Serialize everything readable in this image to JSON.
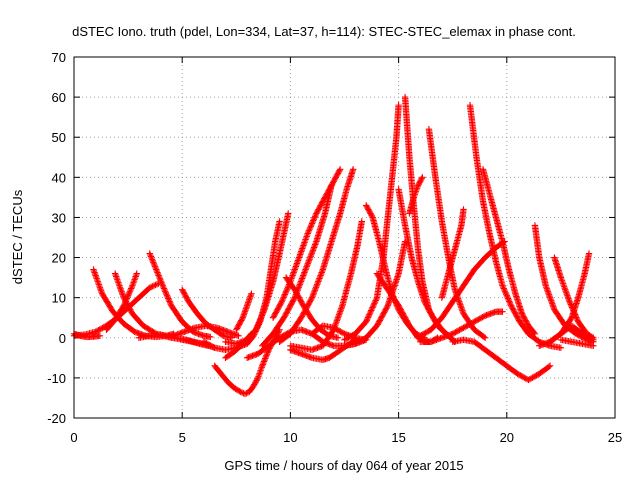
{
  "chart_data": {
    "type": "scatter",
    "title": "dSTEC Iono. truth (pdel, Lon=334, Lat=37, h=114): STEC-STEC_elemax in phase cont.",
    "xlabel": "GPS time / hours of day 064 of year 2015",
    "ylabel": "dSTEC  / TECUs",
    "xlim": [
      0,
      25
    ],
    "ylim": [
      -20,
      70
    ],
    "xticks": [
      0,
      5,
      10,
      15,
      20,
      25
    ],
    "yticks": [
      -20,
      -10,
      0,
      10,
      20,
      30,
      40,
      50,
      60,
      70
    ],
    "grid": true,
    "marker": "+",
    "color": "#ff0000",
    "series": [
      {
        "x": [
          0.0,
          0.3,
          0.6,
          0.9,
          1.2
        ],
        "y": [
          1.0,
          0.5,
          0.2,
          0.3,
          0.5
        ]
      },
      {
        "x": [
          0.9,
          1.3,
          1.8,
          2.3,
          2.8,
          3.3,
          3.8,
          4.3,
          4.6
        ],
        "y": [
          17.0,
          11.0,
          6.5,
          3.5,
          1.5,
          0.5,
          0.2,
          0.5,
          1.0
        ]
      },
      {
        "x": [
          0.0,
          0.5,
          1.0,
          1.5,
          2.0,
          2.5,
          3.0,
          3.5,
          3.9
        ],
        "y": [
          0.5,
          0.8,
          1.5,
          3.0,
          5.0,
          7.5,
          10.0,
          12.5,
          13.5
        ]
      },
      {
        "x": [
          1.9,
          2.3,
          2.7,
          3.2,
          3.8,
          4.5,
          5.2,
          5.8,
          6.2
        ],
        "y": [
          16.0,
          10.0,
          6.0,
          3.0,
          1.0,
          0.0,
          -0.5,
          -1.5,
          -2.0
        ]
      },
      {
        "x": [
          1.5,
          1.9,
          2.3,
          2.7,
          2.9
        ],
        "y": [
          2.0,
          4.5,
          8.0,
          13.0,
          16.0
        ]
      },
      {
        "x": [
          3.5,
          3.8,
          4.1,
          4.5,
          5.0,
          5.5,
          6.0,
          6.3
        ],
        "y": [
          21.0,
          17.0,
          13.0,
          8.0,
          4.0,
          1.5,
          0.5,
          0.2
        ]
      },
      {
        "x": [
          3.0,
          3.5,
          4.0,
          4.5,
          5.0,
          5.5,
          6.0,
          6.5
        ],
        "y": [
          0.0,
          0.5,
          0.8,
          0.2,
          -0.5,
          -1.0,
          -1.5,
          -2.5
        ]
      },
      {
        "x": [
          5.0,
          5.3,
          5.7,
          6.1,
          6.5,
          6.9,
          7.3
        ],
        "y": [
          12.0,
          9.0,
          6.0,
          3.5,
          2.0,
          0.5,
          0.0
        ]
      },
      {
        "x": [
          4.6,
          5.1,
          5.6,
          6.1,
          6.6,
          7.1,
          7.6
        ],
        "y": [
          0.5,
          1.5,
          2.5,
          3.0,
          2.5,
          1.5,
          0.5
        ]
      },
      {
        "x": [
          6.5,
          6.8,
          7.1,
          7.4,
          7.7,
          7.9,
          8.1,
          8.3,
          8.5,
          8.7,
          9.0,
          9.3,
          9.5
        ],
        "y": [
          -7.0,
          -9.0,
          -11.0,
          -12.5,
          -13.5,
          -14.0,
          -13.5,
          -12.0,
          -10.0,
          -7.0,
          -3.0,
          0.0,
          2.0
        ]
      },
      {
        "x": [
          6.0,
          6.5,
          7.0,
          7.5,
          8.0,
          8.3,
          8.6,
          8.9,
          9.1,
          9.3,
          9.5
        ],
        "y": [
          -1.0,
          -2.5,
          -3.0,
          -2.5,
          -1.5,
          0.5,
          4.0,
          10.0,
          17.0,
          24.0,
          29.0
        ]
      },
      {
        "x": [
          7.0,
          7.5,
          8.0,
          8.4,
          8.8,
          9.2,
          9.5,
          9.7,
          9.9
        ],
        "y": [
          -1.0,
          -1.5,
          -0.5,
          2.0,
          7.0,
          14.0,
          21.0,
          26.0,
          31.0
        ]
      },
      {
        "x": [
          7.5,
          7.8,
          8.0,
          8.2
        ],
        "y": [
          2.0,
          5.0,
          8.0,
          11.0
        ]
      },
      {
        "x": [
          7.0,
          7.4,
          7.8,
          8.2
        ],
        "y": [
          -5.0,
          -3.5,
          -1.5,
          1.0
        ]
      },
      {
        "x": [
          9.8,
          10.2,
          10.6,
          11.0,
          11.4,
          11.8,
          12.2
        ],
        "y": [
          15.0,
          12.0,
          8.0,
          4.5,
          2.0,
          0.5,
          0.0
        ]
      },
      {
        "x": [
          8.0,
          8.5,
          9.0,
          9.5,
          10.0,
          10.5,
          11.0,
          11.5,
          12.0,
          12.5,
          13.0,
          13.5
        ],
        "y": [
          -5.0,
          -4.0,
          -2.0,
          0.0,
          1.5,
          2.0,
          1.0,
          -1.0,
          -2.0,
          -2.0,
          -1.5,
          -0.5
        ]
      },
      {
        "x": [
          9.2,
          9.6,
          10.0,
          10.4,
          10.8,
          11.2,
          11.6,
          12.0,
          12.3
        ],
        "y": [
          5.0,
          9.0,
          14.0,
          20.0,
          26.0,
          31.0,
          35.0,
          39.0,
          42.0
        ]
      },
      {
        "x": [
          8.7,
          9.2,
          9.7,
          10.2,
          10.7,
          11.2,
          11.6,
          11.9
        ],
        "y": [
          -2.0,
          1.0,
          5.0,
          10.0,
          17.0,
          24.0,
          31.0,
          38.0
        ]
      },
      {
        "x": [
          9.5,
          10.0,
          10.5,
          11.0,
          11.5,
          11.9,
          12.3,
          12.6,
          12.9
        ],
        "y": [
          -1.0,
          1.0,
          5.0,
          10.0,
          17.0,
          24.0,
          31.0,
          37.0,
          42.0
        ]
      },
      {
        "x": [
          10.0,
          10.5,
          11.0,
          11.5,
          12.0,
          12.4,
          12.8,
          13.1,
          13.3
        ],
        "y": [
          -2.0,
          -2.5,
          -3.0,
          -2.0,
          2.0,
          8.0,
          16.0,
          23.0,
          29.0
        ]
      },
      {
        "x": [
          10.0,
          10.5,
          11.0,
          11.5,
          11.8,
          12.2,
          12.6,
          13.0
        ],
        "y": [
          -3.0,
          -4.0,
          -5.0,
          -5.5,
          -5.0,
          -3.5,
          -2.0,
          -0.5
        ]
      },
      {
        "x": [
          11.0,
          11.5,
          12.0,
          12.5,
          13.0,
          13.4
        ],
        "y": [
          1.0,
          3.0,
          2.5,
          1.0,
          0.0,
          -0.5
        ]
      },
      {
        "x": [
          12.5,
          13.0,
          13.5,
          14.0,
          14.5,
          15.0,
          15.3
        ],
        "y": [
          -2.0,
          -1.5,
          0.0,
          3.0,
          8.0,
          16.0,
          24.0
        ]
      },
      {
        "x": [
          13.5,
          13.8,
          14.1,
          14.4,
          14.7,
          15.0,
          15.4,
          15.8,
          16.2
        ],
        "y": [
          33.0,
          30.0,
          24.0,
          17.0,
          11.0,
          7.0,
          3.5,
          1.0,
          0.0
        ]
      },
      {
        "x": [
          12.5,
          13.0,
          13.5,
          14.0,
          14.3,
          14.6,
          14.9,
          15.0
        ],
        "y": [
          -0.5,
          1.0,
          4.0,
          10.0,
          20.0,
          35.0,
          50.0,
          58.0
        ]
      },
      {
        "x": [
          15.3,
          15.5,
          15.7,
          15.9,
          16.1,
          16.4,
          16.8,
          17.2,
          17.6
        ],
        "y": [
          60.0,
          45.0,
          33.0,
          22.0,
          14.0,
          7.0,
          3.0,
          1.0,
          -1.0
        ]
      },
      {
        "x": [
          15.0,
          15.3,
          15.6,
          15.9,
          16.2,
          16.6,
          17.0,
          17.4
        ],
        "y": [
          37.0,
          28.0,
          20.0,
          14.0,
          9.0,
          5.0,
          2.0,
          0.0
        ]
      },
      {
        "x": [
          14.0,
          14.5,
          15.0,
          15.5,
          15.9,
          16.2,
          16.5,
          16.8
        ],
        "y": [
          16.0,
          12.0,
          8.0,
          3.0,
          0.0,
          -1.0,
          -1.0,
          0.0
        ]
      },
      {
        "x": [
          15.5,
          15.7,
          15.9,
          16.1
        ],
        "y": [
          31.0,
          35.0,
          38.0,
          40.0
        ]
      },
      {
        "x": [
          16.4,
          16.7,
          17.0,
          17.3,
          17.6,
          18.0,
          18.5,
          19.0
        ],
        "y": [
          52.0,
          40.0,
          29.0,
          20.0,
          12.0,
          6.0,
          2.0,
          0.0
        ]
      },
      {
        "x": [
          16.0,
          16.5,
          17.0,
          17.5,
          18.0,
          18.5,
          19.0,
          19.5,
          19.9
        ],
        "y": [
          0.5,
          2.0,
          5.0,
          9.0,
          13.0,
          17.0,
          20.0,
          22.5,
          24.0
        ]
      },
      {
        "x": [
          16.0,
          16.5,
          17.0,
          17.5,
          18.0,
          18.5,
          19.0,
          19.5,
          19.8
        ],
        "y": [
          -1.0,
          -1.0,
          0.0,
          1.0,
          2.5,
          4.0,
          5.5,
          6.5,
          6.5
        ]
      },
      {
        "x": [
          17.0,
          17.3,
          17.6,
          17.9,
          18.0
        ],
        "y": [
          10.0,
          16.0,
          22.0,
          28.0,
          32.0
        ]
      },
      {
        "x": [
          18.3,
          18.6,
          18.9,
          19.2,
          19.5,
          19.8,
          20.2,
          20.6,
          21.0,
          21.5,
          22.0,
          22.5
        ],
        "y": [
          58.0,
          45.0,
          34.0,
          26.0,
          19.0,
          13.0,
          8.0,
          4.0,
          1.0,
          -1.0,
          -2.0,
          -2.5
        ]
      },
      {
        "x": [
          18.9,
          19.2,
          19.5,
          19.8,
          20.1,
          20.4,
          20.7,
          21.0,
          21.3
        ],
        "y": [
          42.0,
          36.0,
          30.0,
          24.0,
          17.0,
          11.0,
          6.0,
          3.0,
          1.0
        ]
      },
      {
        "x": [
          17.5,
          18.0,
          18.5,
          19.0,
          19.5,
          20.0,
          20.5,
          21.0,
          21.5,
          22.0
        ],
        "y": [
          -1.0,
          -0.5,
          -1.0,
          -3.0,
          -5.0,
          -7.0,
          -9.0,
          -10.5,
          -9.0,
          -7.0
        ]
      },
      {
        "x": [
          21.3,
          21.5,
          21.8,
          22.2,
          22.7,
          23.2,
          23.7,
          24.0
        ],
        "y": [
          28.0,
          20.0,
          13.0,
          7.0,
          3.0,
          1.0,
          -0.5,
          -1.0
        ]
      },
      {
        "x": [
          22.2,
          22.5,
          22.9,
          23.3,
          23.7,
          24.0
        ],
        "y": [
          20.0,
          15.0,
          9.0,
          4.0,
          1.0,
          0.0
        ]
      },
      {
        "x": [
          21.5,
          22.0,
          22.5,
          23.0,
          23.5,
          24.0
        ],
        "y": [
          -2.0,
          -1.0,
          1.0,
          3.0,
          1.0,
          -0.5
        ]
      },
      {
        "x": [
          22.0,
          22.5,
          23.0,
          23.3,
          23.6,
          23.8
        ],
        "y": [
          -1.0,
          1.0,
          5.0,
          10.0,
          16.0,
          21.0
        ]
      },
      {
        "x": [
          22.5,
          23.0,
          23.5,
          24.0
        ],
        "y": [
          -0.5,
          -1.0,
          -1.5,
          -2.0
        ]
      }
    ]
  }
}
